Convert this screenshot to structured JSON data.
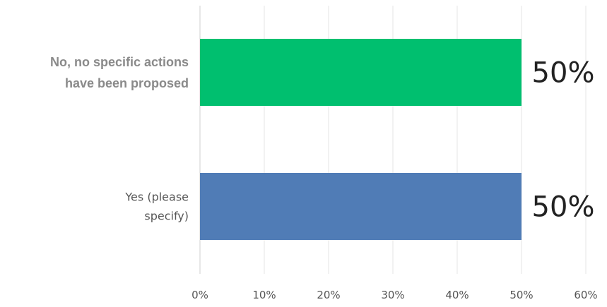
{
  "chart_data": {
    "type": "bar",
    "orientation": "horizontal",
    "categories": [
      [
        "No, no specific actions",
        "have been proposed"
      ],
      [
        "Yes (please",
        "specify)"
      ]
    ],
    "values": [
      50,
      50
    ],
    "value_labels": [
      "50%",
      "50%"
    ],
    "colors": [
      "#00bf6f",
      "#507cb6"
    ],
    "xlim": [
      0,
      60
    ],
    "xticks": [
      0,
      10,
      20,
      30,
      40,
      50,
      60
    ],
    "xtick_labels": [
      "0%",
      "10%",
      "20%",
      "30%",
      "40%",
      "50%",
      "60%"
    ],
    "grid": true,
    "title": "",
    "xlabel": "",
    "ylabel": ""
  }
}
